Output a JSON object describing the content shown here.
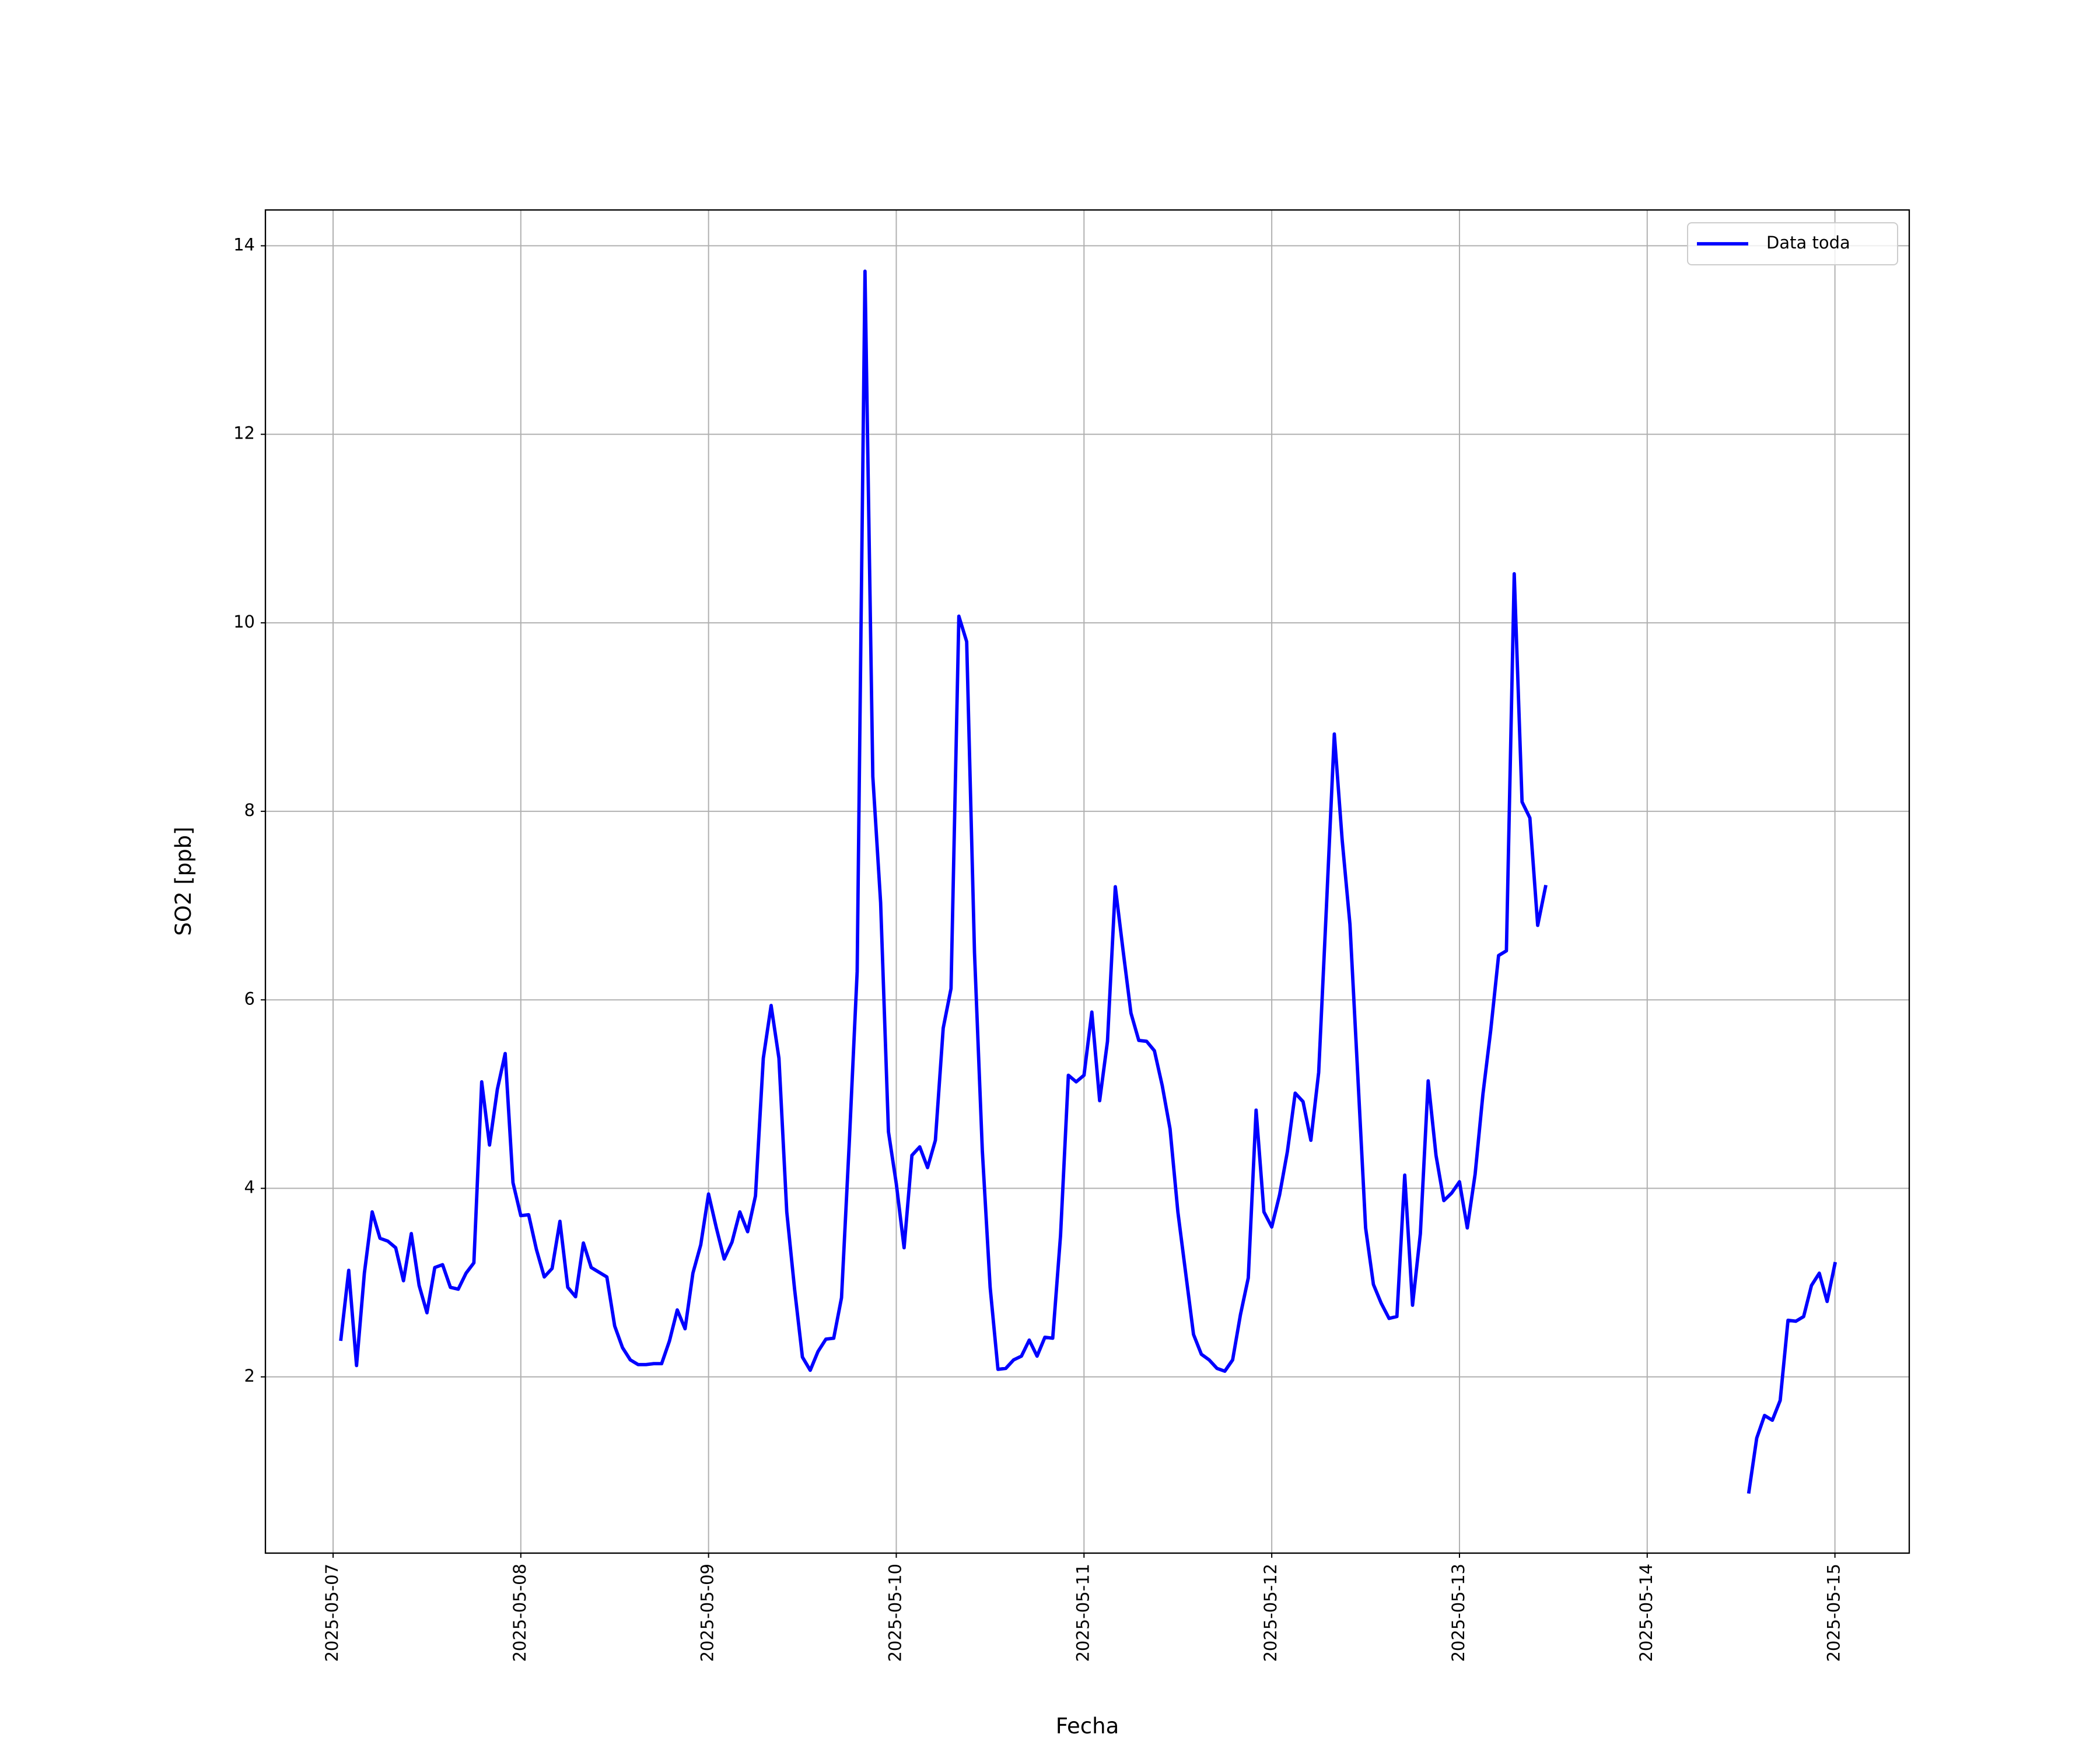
{
  "chart_data": {
    "type": "line",
    "xlabel": "Fecha",
    "ylabel": "SO2 [ppb]",
    "x": [
      "2025-05-07T01:00",
      "2025-05-07T02:00",
      "2025-05-07T03:00",
      "2025-05-07T04:00",
      "2025-05-07T05:00",
      "2025-05-07T06:00",
      "2025-05-07T07:00",
      "2025-05-07T08:00",
      "2025-05-07T09:00",
      "2025-05-07T10:00",
      "2025-05-07T11:00",
      "2025-05-07T12:00",
      "2025-05-07T13:00",
      "2025-05-07T14:00",
      "2025-05-07T15:00",
      "2025-05-07T16:00",
      "2025-05-07T17:00",
      "2025-05-07T18:00",
      "2025-05-07T19:00",
      "2025-05-07T20:00",
      "2025-05-07T21:00",
      "2025-05-07T22:00",
      "2025-05-07T23:00",
      "2025-05-08T00:00",
      "2025-05-08T01:00",
      "2025-05-08T02:00",
      "2025-05-08T03:00",
      "2025-05-08T04:00",
      "2025-05-08T05:00",
      "2025-05-08T06:00",
      "2025-05-08T07:00",
      "2025-05-08T08:00",
      "2025-05-08T09:00",
      "2025-05-08T10:00",
      "2025-05-08T11:00",
      "2025-05-08T12:00",
      "2025-05-08T13:00",
      "2025-05-08T14:00",
      "2025-05-08T15:00",
      "2025-05-08T16:00",
      "2025-05-08T17:00",
      "2025-05-08T18:00",
      "2025-05-08T19:00",
      "2025-05-08T20:00",
      "2025-05-08T21:00",
      "2025-05-08T22:00",
      "2025-05-08T23:00",
      "2025-05-09T00:00",
      "2025-05-09T01:00",
      "2025-05-09T02:00",
      "2025-05-09T03:00",
      "2025-05-09T04:00",
      "2025-05-09T05:00",
      "2025-05-09T06:00",
      "2025-05-09T07:00",
      "2025-05-09T08:00",
      "2025-05-09T09:00",
      "2025-05-09T10:00",
      "2025-05-09T11:00",
      "2025-05-09T12:00",
      "2025-05-09T13:00",
      "2025-05-09T14:00",
      "2025-05-09T15:00",
      "2025-05-09T16:00",
      "2025-05-09T17:00",
      "2025-05-09T18:00",
      "2025-05-09T19:00",
      "2025-05-09T20:00",
      "2025-05-09T21:00",
      "2025-05-09T22:00",
      "2025-05-09T23:00",
      "2025-05-10T00:00",
      "2025-05-10T01:00",
      "2025-05-10T02:00",
      "2025-05-10T03:00",
      "2025-05-10T04:00",
      "2025-05-10T05:00",
      "2025-05-10T06:00",
      "2025-05-10T07:00",
      "2025-05-10T08:00",
      "2025-05-10T09:00",
      "2025-05-10T10:00",
      "2025-05-10T11:00",
      "2025-05-10T12:00",
      "2025-05-10T13:00",
      "2025-05-10T14:00",
      "2025-05-10T15:00",
      "2025-05-10T16:00",
      "2025-05-10T17:00",
      "2025-05-10T18:00",
      "2025-05-10T19:00",
      "2025-05-10T20:00",
      "2025-05-10T21:00",
      "2025-05-10T22:00",
      "2025-05-10T23:00",
      "2025-05-11T00:00",
      "2025-05-11T01:00",
      "2025-05-11T02:00",
      "2025-05-11T03:00",
      "2025-05-11T04:00",
      "2025-05-11T05:00",
      "2025-05-11T06:00",
      "2025-05-11T07:00",
      "2025-05-11T08:00",
      "2025-05-11T09:00",
      "2025-05-11T10:00",
      "2025-05-11T11:00",
      "2025-05-11T12:00",
      "2025-05-11T13:00",
      "2025-05-11T14:00",
      "2025-05-11T15:00",
      "2025-05-11T16:00",
      "2025-05-11T17:00",
      "2025-05-11T18:00",
      "2025-05-11T19:00",
      "2025-05-11T20:00",
      "2025-05-11T21:00",
      "2025-05-11T22:00",
      "2025-05-11T23:00",
      "2025-05-12T00:00",
      "2025-05-12T01:00",
      "2025-05-12T02:00",
      "2025-05-12T03:00",
      "2025-05-12T04:00",
      "2025-05-12T05:00",
      "2025-05-12T06:00",
      "2025-05-12T07:00",
      "2025-05-12T08:00",
      "2025-05-12T09:00",
      "2025-05-12T10:00",
      "2025-05-12T11:00",
      "2025-05-12T12:00",
      "2025-05-12T13:00",
      "2025-05-12T14:00",
      "2025-05-12T15:00",
      "2025-05-12T16:00",
      "2025-05-12T17:00",
      "2025-05-12T18:00",
      "2025-05-12T19:00",
      "2025-05-12T20:00",
      "2025-05-12T21:00",
      "2025-05-12T22:00",
      "2025-05-12T23:00",
      "2025-05-13T00:00",
      "2025-05-13T01:00",
      "2025-05-13T02:00",
      "2025-05-13T03:00",
      "2025-05-13T04:00",
      "2025-05-13T05:00",
      "2025-05-13T06:00",
      "2025-05-13T07:00",
      "2025-05-13T08:00",
      "2025-05-13T09:00",
      "2025-05-13T10:00",
      "2025-05-13T11:00",
      "2025-05-14T00:00",
      "2025-05-14T13:00",
      "2025-05-14T14:00",
      "2025-05-14T15:00",
      "2025-05-14T16:00",
      "2025-05-14T17:00",
      "2025-05-14T18:00",
      "2025-05-14T19:00",
      "2025-05-14T20:00",
      "2025-05-14T21:00",
      "2025-05-14T22:00",
      "2025-05-14T23:00",
      "2025-05-15T00:00"
    ],
    "series": [
      {
        "name": "Data toda",
        "color": "#0000ff",
        "values": [
          2.4,
          3.13,
          2.12,
          3.1,
          3.75,
          3.47,
          3.44,
          3.37,
          3.02,
          3.52,
          2.97,
          2.68,
          3.16,
          3.19,
          2.95,
          2.93,
          3.1,
          3.21,
          5.13,
          4.46,
          5.05,
          5.43,
          4.06,
          3.71,
          3.72,
          3.35,
          3.06,
          3.15,
          3.65,
          2.95,
          2.85,
          3.42,
          3.16,
          3.11,
          3.06,
          2.54,
          2.31,
          2.18,
          2.13,
          2.13,
          2.14,
          2.14,
          2.38,
          2.71,
          2.51,
          3.1,
          3.4,
          3.94,
          3.58,
          3.25,
          3.43,
          3.75,
          3.54,
          3.92,
          5.38,
          5.94,
          5.38,
          3.75,
          2.93,
          2.21,
          2.07,
          2.27,
          2.4,
          2.41,
          2.84,
          4.5,
          6.3,
          13.73,
          8.37,
          7.03,
          4.6,
          4.05,
          3.37,
          4.35,
          4.44,
          4.22,
          4.51,
          5.7,
          6.12,
          10.07,
          9.8,
          6.5,
          4.4,
          2.95,
          2.08,
          2.09,
          2.18,
          2.22,
          2.39,
          2.22,
          2.42,
          2.41,
          3.5,
          5.2,
          5.13,
          5.2,
          5.87,
          4.93,
          5.56,
          7.2,
          6.52,
          5.86,
          5.57,
          5.56,
          5.46,
          5.09,
          4.63,
          3.75,
          3.1,
          2.45,
          2.24,
          2.18,
          2.09,
          2.06,
          2.18,
          2.66,
          3.05,
          4.83,
          3.75,
          3.59,
          3.93,
          4.39,
          5.01,
          4.92,
          4.51,
          5.23,
          7.0,
          8.82,
          7.7,
          6.8,
          5.2,
          3.58,
          2.98,
          2.78,
          2.62,
          2.64,
          4.14,
          2.76,
          3.52,
          5.14,
          4.35,
          3.87,
          3.95,
          4.07,
          3.58,
          4.15,
          5.0,
          5.68,
          6.47,
          6.52,
          10.52,
          8.1,
          7.93,
          6.79,
          7.2,
          null,
          0.78,
          1.35,
          1.59,
          1.54,
          1.75,
          2.6,
          2.59,
          2.64,
          2.97,
          3.1,
          2.8,
          3.2
        ]
      }
    ],
    "xlim": [
      "2025-05-06T15:21",
      "2025-05-15T09:30"
    ],
    "xticks": [
      "2025-05-07",
      "2025-05-08",
      "2025-05-09",
      "2025-05-10",
      "2025-05-11",
      "2025-05-12",
      "2025-05-13",
      "2025-05-14",
      "2025-05-15"
    ],
    "ylim": [
      0.13,
      14.38
    ],
    "yticks": [
      2,
      4,
      6,
      8,
      10,
      12,
      14
    ],
    "grid": true,
    "legend": "upper right"
  }
}
